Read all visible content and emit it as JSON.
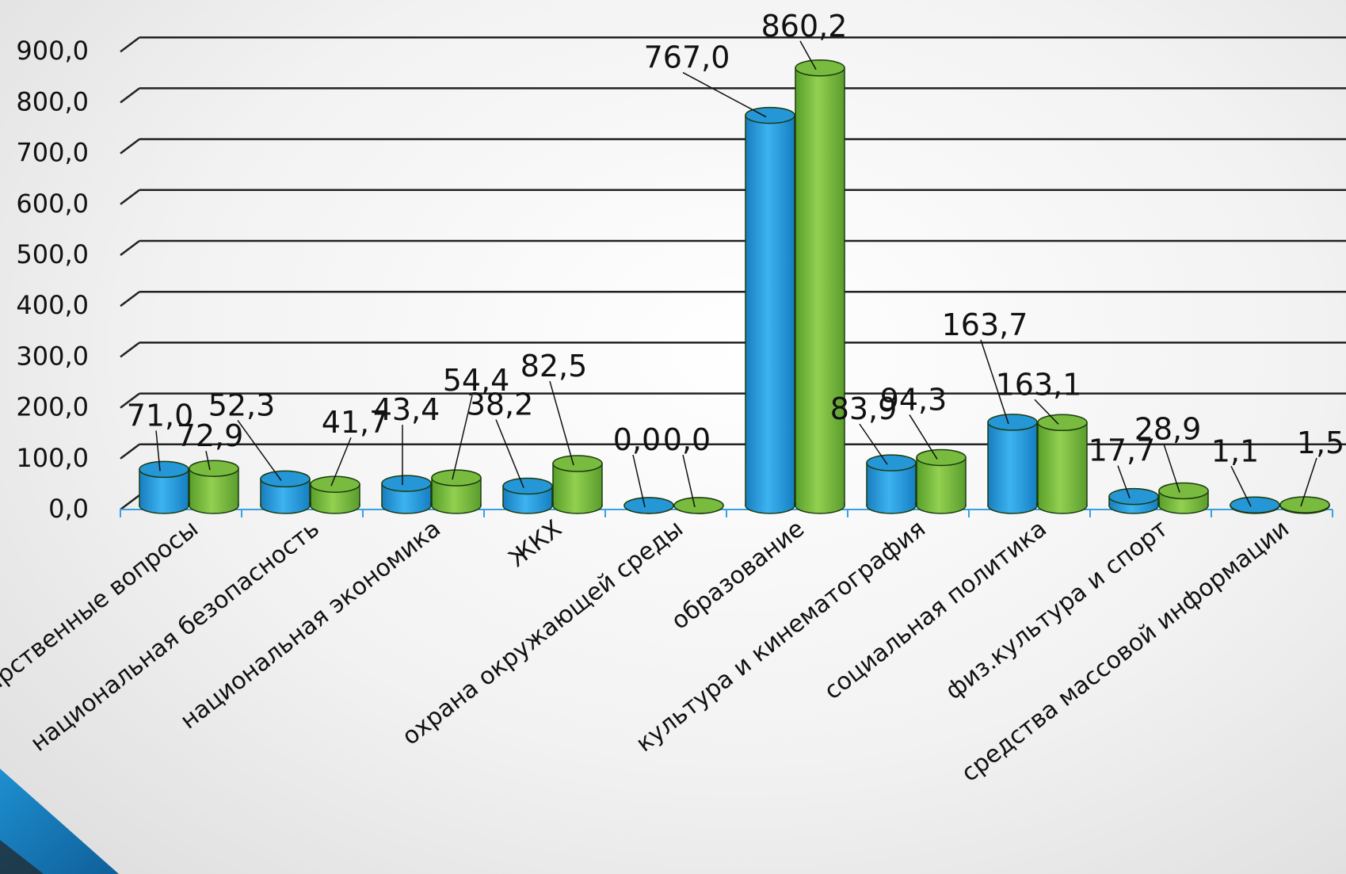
{
  "chart_data": {
    "type": "bar",
    "title": "",
    "xlabel": "",
    "ylabel": "",
    "ylim": [
      0,
      900
    ],
    "yticks": [
      "0,0",
      "100,0",
      "200,0",
      "300,0",
      "400,0",
      "500,0",
      "600,0",
      "700,0",
      "800,0",
      "900,0"
    ],
    "categories": [
      "общегосударственные вопросы",
      "национальная безопасность",
      "национальная экономика",
      "ЖКХ",
      "охрана окружающей среды",
      "образование",
      "культура и кинематография",
      "социальная политика",
      "физ.культура и спорт",
      "средства массовой информации"
    ],
    "series": [
      {
        "color": "#2aa0e0",
        "values": [
          71.0,
          52.3,
          43.4,
          38.2,
          0.0,
          767.0,
          83.9,
          163.7,
          17.7,
          1.1
        ],
        "labels": [
          "71,0",
          "52,3",
          "43,4",
          "38,2",
          "0,0",
          "767,0",
          "83,9",
          "163,7",
          "17,7",
          "1,1"
        ]
      },
      {
        "color": "#7dc242",
        "values": [
          72.9,
          41.7,
          54.4,
          82.5,
          0.0,
          860.2,
          94.3,
          163.1,
          28.9,
          1.5
        ],
        "labels": [
          "72,9",
          "41,7",
          "54,4",
          "82,5",
          "0,0",
          "860,2",
          "94,3",
          "163,1",
          "28,9",
          "1,5"
        ]
      }
    ],
    "grid": true,
    "legend": "none"
  }
}
